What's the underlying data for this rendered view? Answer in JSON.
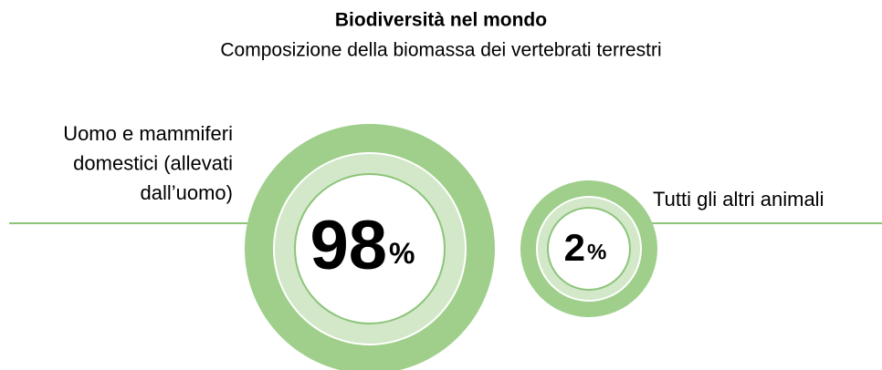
{
  "title": "Biodiversità nel mondo",
  "subtitle": "Composizione della biomassa dei vertebrati terrestri",
  "items": [
    {
      "label_lines": [
        "Uomo e mammiferi",
        "domestici (allevati",
        "dall’uomo)"
      ],
      "value": 98,
      "unit": "%"
    },
    {
      "label_lines": [
        "Tutti gli altri animali"
      ],
      "value": 2,
      "unit": "%"
    }
  ]
}
